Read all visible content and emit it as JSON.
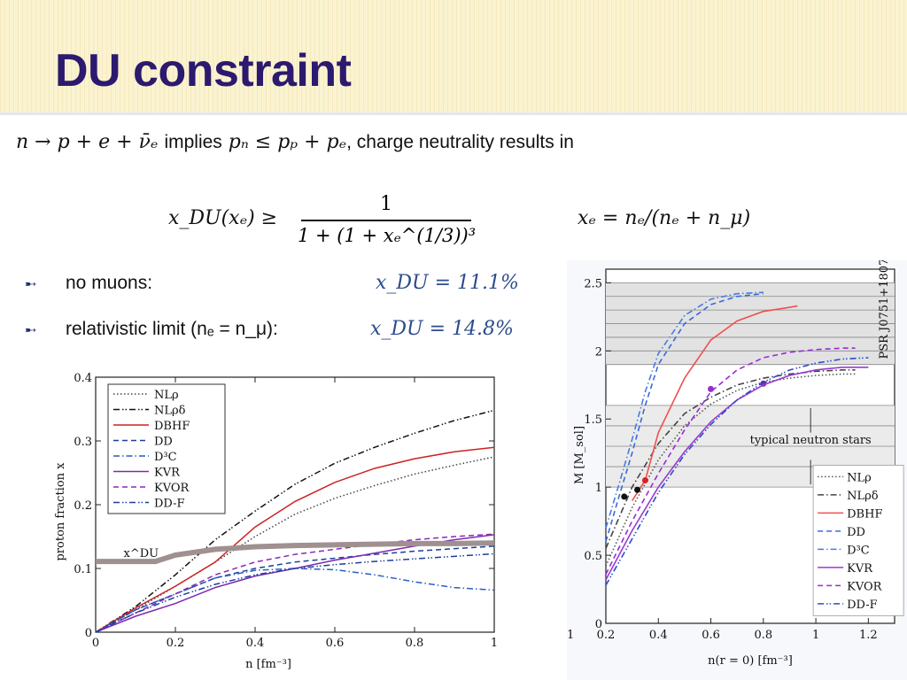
{
  "slide": {
    "title": "DU constraint",
    "line1": {
      "reaction": "n → p + e + ν̄ₑ",
      "implies": "implies",
      "condition": "pₙ ≤ pₚ + pₑ",
      "tail": ", charge neutrality results in"
    },
    "formula": {
      "lhs": "x_DU(xₑ) ≥",
      "numerator": "1",
      "denominator": "1 + (1 + xₑ^(1/3))³",
      "xe_def": "xₑ = nₑ/(nₑ + n_μ)"
    },
    "bullets": [
      {
        "label": "no muons:",
        "value": "x_DU = 11.1%"
      },
      {
        "label": "relativistic limit (nₑ = n_μ):",
        "value": "x_DU = 14.8%"
      }
    ],
    "colors": {
      "title": "#2b1a6e",
      "header_bg": "#fbf3d0",
      "formula_blue": "#2d4b8c"
    }
  },
  "chart_data": [
    {
      "type": "line",
      "xlabel": "n [fm⁻³]",
      "ylabel": "proton fraction x",
      "xlim": [
        0,
        1
      ],
      "ylim": [
        0,
        0.4
      ],
      "xticks": [
        "0",
        "0.2",
        "0.4",
        "0.6",
        "0.8",
        "1"
      ],
      "yticks": [
        "0",
        "0.1",
        "0.2",
        "0.3",
        "0.4"
      ],
      "annotation": "x^DU",
      "legend_position": "top-left",
      "series": [
        {
          "name": "NLρ",
          "color": "#444444",
          "dash": "dotted",
          "x": [
            0,
            0.1,
            0.2,
            0.3,
            0.4,
            0.5,
            0.6,
            0.7,
            0.8,
            0.9,
            1.0
          ],
          "y": [
            0,
            0.035,
            0.072,
            0.11,
            0.15,
            0.185,
            0.21,
            0.23,
            0.248,
            0.262,
            0.275
          ]
        },
        {
          "name": "NLρδ",
          "color": "#111111",
          "dash": "dashdotdot",
          "x": [
            0,
            0.1,
            0.2,
            0.3,
            0.4,
            0.5,
            0.6,
            0.7,
            0.8,
            0.9,
            1.0
          ],
          "y": [
            0,
            0.04,
            0.09,
            0.145,
            0.19,
            0.232,
            0.265,
            0.29,
            0.312,
            0.332,
            0.348
          ]
        },
        {
          "name": "DBHF",
          "color": "#cc2222",
          "dash": "solid",
          "x": [
            0,
            0.1,
            0.2,
            0.3,
            0.4,
            0.5,
            0.6,
            0.7,
            0.8,
            0.9,
            1.0
          ],
          "y": [
            0,
            0.038,
            0.072,
            0.11,
            0.165,
            0.205,
            0.235,
            0.257,
            0.272,
            0.283,
            0.29
          ]
        },
        {
          "name": "DD",
          "color": "#1c3f9c",
          "dash": "dashed",
          "x": [
            0,
            0.1,
            0.2,
            0.3,
            0.4,
            0.5,
            0.6,
            0.7,
            0.8,
            0.9,
            1.0
          ],
          "y": [
            0,
            0.035,
            0.06,
            0.085,
            0.1,
            0.11,
            0.116,
            0.122,
            0.127,
            0.131,
            0.135
          ]
        },
        {
          "name": "D³C",
          "color": "#2a5fc0",
          "dash": "dashdot",
          "x": [
            0,
            0.1,
            0.2,
            0.3,
            0.4,
            0.5,
            0.6,
            0.7,
            0.8,
            0.9,
            1.0
          ],
          "y": [
            0,
            0.035,
            0.06,
            0.085,
            0.097,
            0.1,
            0.098,
            0.09,
            0.079,
            0.07,
            0.066
          ]
        },
        {
          "name": "KVR",
          "color": "#7a2ab0",
          "dash": "solid",
          "x": [
            0,
            0.1,
            0.2,
            0.3,
            0.4,
            0.5,
            0.6,
            0.7,
            0.8,
            0.9,
            1.0
          ],
          "y": [
            0,
            0.025,
            0.045,
            0.07,
            0.088,
            0.1,
            0.113,
            0.124,
            0.135,
            0.145,
            0.153
          ]
        },
        {
          "name": "KVOR",
          "color": "#8a2ab8",
          "dash": "dashed",
          "x": [
            0,
            0.1,
            0.2,
            0.3,
            0.4,
            0.5,
            0.6,
            0.7,
            0.8,
            0.9,
            1.0
          ],
          "y": [
            0,
            0.03,
            0.06,
            0.09,
            0.11,
            0.122,
            0.13,
            0.138,
            0.145,
            0.15,
            0.154
          ]
        },
        {
          "name": "DD-F",
          "color": "#1c3f9c",
          "dash": "dashdotdot",
          "x": [
            0,
            0.1,
            0.2,
            0.3,
            0.4,
            0.5,
            0.6,
            0.7,
            0.8,
            0.9,
            1.0
          ],
          "y": [
            0,
            0.03,
            0.055,
            0.075,
            0.09,
            0.1,
            0.106,
            0.111,
            0.115,
            0.119,
            0.123
          ]
        },
        {
          "name": "x^DU",
          "color": "#a09090",
          "dash": "thick",
          "x": [
            0,
            0.15,
            0.2,
            0.3,
            0.4,
            0.5,
            0.6,
            0.7,
            0.8,
            0.9,
            1.0
          ],
          "y": [
            0.111,
            0.111,
            0.121,
            0.13,
            0.134,
            0.136,
            0.137,
            0.138,
            0.139,
            0.139,
            0.14
          ]
        }
      ]
    },
    {
      "type": "line",
      "xlabel": "n(r = 0) [fm⁻³]",
      "ylabel": "M [M_sol]",
      "xlim": [
        0.2,
        1.3
      ],
      "ylim": [
        0,
        2.6
      ],
      "xticks": [
        "0.2",
        "0.4",
        "0.6",
        "0.8",
        "1",
        "1.2"
      ],
      "yticks": [
        "0",
        "0.5",
        "1",
        "1.5",
        "2",
        "2.5"
      ],
      "extra_tick_left": "1",
      "bands": [
        {
          "label": "PSR J0751+1807",
          "from": 1.9,
          "to": 2.5
        },
        {
          "label": "typical neutron stars",
          "from": 1.0,
          "to": 1.6
        }
      ],
      "legend_position": "bottom-right",
      "series": [
        {
          "name": "NLρ",
          "color": "#555555",
          "dash": "dotted",
          "x": [
            0.2,
            0.3,
            0.4,
            0.5,
            0.6,
            0.7,
            0.8,
            0.9,
            1.0,
            1.1,
            1.15
          ],
          "y": [
            0.42,
            0.85,
            1.2,
            1.45,
            1.61,
            1.71,
            1.77,
            1.8,
            1.82,
            1.83,
            1.83
          ],
          "marker": {
            "x": 0.8,
            "y": 1.76,
            "color": "#7a1fa2"
          }
        },
        {
          "name": "NLρδ",
          "color": "#444444",
          "dash": "dashdot",
          "x": [
            0.2,
            0.3,
            0.4,
            0.5,
            0.6,
            0.7,
            0.8,
            0.9,
            1.0,
            1.1,
            1.15
          ],
          "y": [
            0.55,
            1.0,
            1.32,
            1.54,
            1.66,
            1.75,
            1.8,
            1.83,
            1.85,
            1.86,
            1.86
          ]
        },
        {
          "name": "DBHF",
          "color": "#f05050",
          "dash": "solid",
          "x": [
            0.3,
            0.35,
            0.4,
            0.5,
            0.6,
            0.7,
            0.8,
            0.9,
            0.93
          ],
          "y": [
            0.9,
            1.05,
            1.4,
            1.8,
            2.08,
            2.22,
            2.29,
            2.32,
            2.33
          ],
          "marker": {
            "x": 0.35,
            "y": 1.05,
            "color": "#e02020"
          }
        },
        {
          "name": "DD",
          "color": "#3a6ad8",
          "dash": "dashed",
          "x": [
            0.2,
            0.25,
            0.3,
            0.35,
            0.4,
            0.5,
            0.6,
            0.7,
            0.8
          ],
          "y": [
            0.6,
            0.93,
            1.25,
            1.6,
            1.9,
            2.2,
            2.34,
            2.4,
            2.42
          ],
          "marker": {
            "x": 0.27,
            "y": 0.93,
            "color": "#111111"
          }
        },
        {
          "name": "D³C",
          "color": "#4a7ae0",
          "dash": "dashdot",
          "x": [
            0.2,
            0.25,
            0.3,
            0.35,
            0.4,
            0.5,
            0.6,
            0.7,
            0.8
          ],
          "y": [
            0.7,
            1.02,
            1.35,
            1.7,
            1.98,
            2.26,
            2.38,
            2.42,
            2.43
          ],
          "marker": {
            "x": 0.32,
            "y": 0.98,
            "color": "#111111"
          }
        },
        {
          "name": "KVR",
          "color": "#9a3ad0",
          "dash": "solid",
          "x": [
            0.2,
            0.3,
            0.4,
            0.5,
            0.6,
            0.7,
            0.8,
            0.9,
            1.0,
            1.1,
            1.2
          ],
          "y": [
            0.32,
            0.68,
            1.0,
            1.26,
            1.48,
            1.64,
            1.75,
            1.82,
            1.86,
            1.88,
            1.88
          ]
        },
        {
          "name": "KVOR",
          "color": "#9a2ad8",
          "dash": "dashed",
          "x": [
            0.2,
            0.3,
            0.4,
            0.5,
            0.6,
            0.7,
            0.8,
            0.9,
            1.0,
            1.1,
            1.15
          ],
          "y": [
            0.36,
            0.75,
            1.1,
            1.42,
            1.7,
            1.86,
            1.95,
            1.99,
            2.01,
            2.02,
            2.02
          ],
          "marker": {
            "x": 0.6,
            "y": 1.72,
            "color": "#9a2ad8"
          }
        },
        {
          "name": "DD-F",
          "color": "#2a4ad0",
          "dash": "dashdotdot",
          "x": [
            0.2,
            0.3,
            0.4,
            0.5,
            0.6,
            0.7,
            0.8,
            0.9,
            1.0,
            1.1,
            1.2
          ],
          "y": [
            0.28,
            0.62,
            0.96,
            1.24,
            1.46,
            1.64,
            1.77,
            1.86,
            1.91,
            1.94,
            1.95
          ]
        }
      ]
    }
  ]
}
